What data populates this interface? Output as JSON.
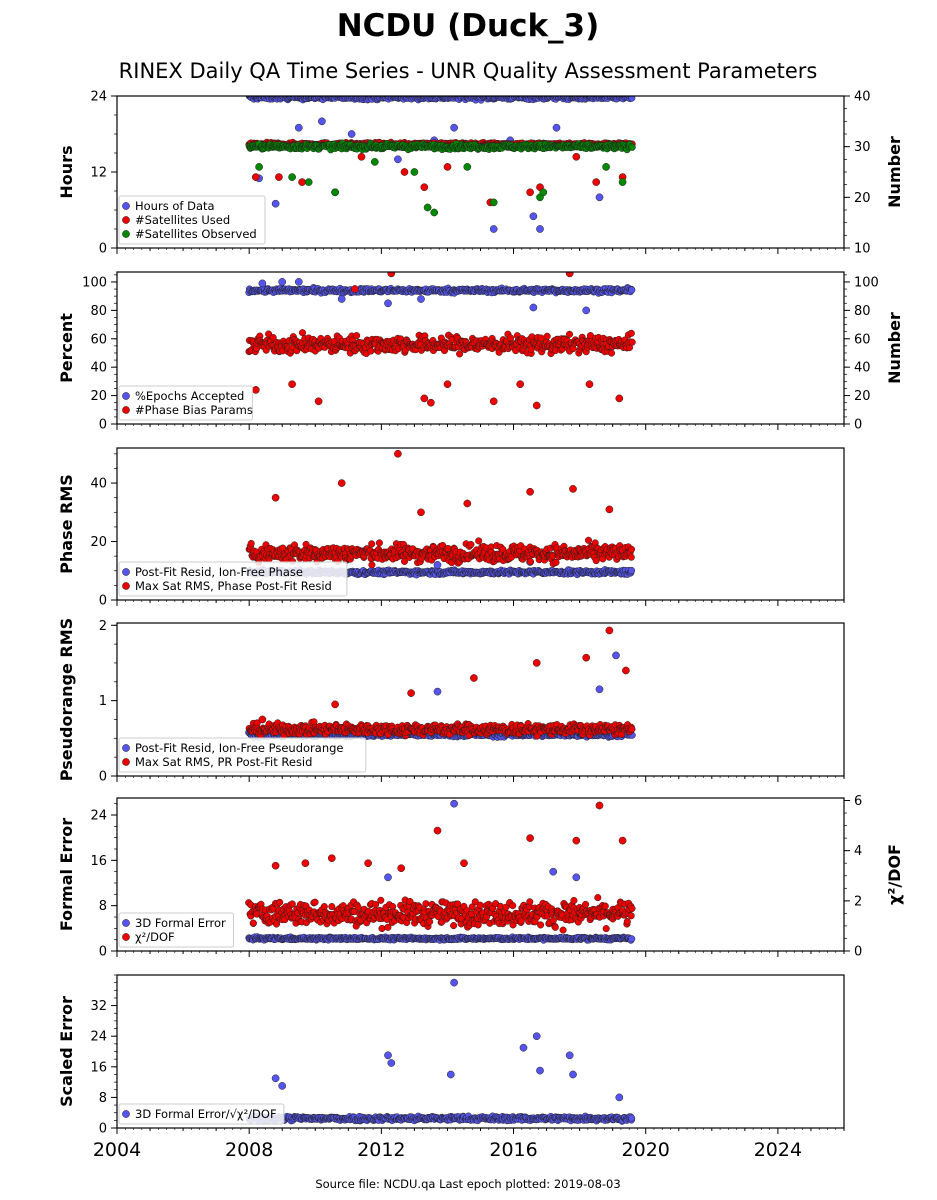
{
  "page": {
    "title": "NCDU (Duck_3)",
    "subtitle": "RINEX Daily QA Time Series - UNR Quality Assessment Parameters",
    "footer": "Source file: NCDU.qa Last epoch plotted: 2019-08-03"
  },
  "colors": {
    "blue": "#5555ee",
    "red": "#ee0000",
    "green": "#008800",
    "frame": "#000000"
  },
  "chart_data": [
    {
      "type": "scatter",
      "ylabel": "Hours",
      "ylabel_right": "Number",
      "xlim": [
        2004,
        2026
      ],
      "ylim": [
        0,
        24
      ],
      "ylim_right": [
        10,
        40
      ],
      "yticks": [
        0,
        12,
        24
      ],
      "yticks_right": [
        10,
        20,
        30,
        40
      ],
      "legend_placement": "lower-left",
      "series": [
        {
          "name": "Hours of Data",
          "color": "blue",
          "axis": "left",
          "base": 23.8,
          "spread": 0.6,
          "outliers": [
            [
              2008.3,
              11.0
            ],
            [
              2008.8,
              7.0
            ],
            [
              2009.5,
              19.0
            ],
            [
              2010.2,
              20.0
            ],
            [
              2011.1,
              18.0
            ],
            [
              2012.5,
              14.0
            ],
            [
              2013.6,
              17.0
            ],
            [
              2014.2,
              19.0
            ],
            [
              2015.4,
              3.0
            ],
            [
              2015.9,
              17.0
            ],
            [
              2016.6,
              5.0
            ],
            [
              2016.8,
              3.0
            ],
            [
              2017.3,
              19.0
            ],
            [
              2018.6,
              8.0
            ]
          ]
        },
        {
          "name": "#Satellites Used",
          "color": "red",
          "axis": "right",
          "base": 30.5,
          "spread": 0.5,
          "outliers": [
            [
              2008.2,
              24.0
            ],
            [
              2008.9,
              24.0
            ],
            [
              2009.6,
              23.0
            ],
            [
              2010.6,
              21.0
            ],
            [
              2011.4,
              28.0
            ],
            [
              2012.7,
              25.0
            ],
            [
              2013.3,
              22.0
            ],
            [
              2014.0,
              26.0
            ],
            [
              2015.3,
              19.0
            ],
            [
              2016.5,
              21.0
            ],
            [
              2016.8,
              22.0
            ],
            [
              2017.9,
              28.0
            ],
            [
              2018.5,
              23.0
            ],
            [
              2019.3,
              24.0
            ]
          ]
        },
        {
          "name": "#Satellites Observed",
          "color": "green",
          "axis": "right",
          "base": 30.0,
          "spread": 0.8,
          "outliers": [
            [
              2008.3,
              26.0
            ],
            [
              2009.3,
              24.0
            ],
            [
              2009.8,
              23.0
            ],
            [
              2010.6,
              21.0
            ],
            [
              2011.8,
              27.0
            ],
            [
              2013.0,
              25.0
            ],
            [
              2013.4,
              18.0
            ],
            [
              2013.6,
              17.0
            ],
            [
              2014.6,
              26.0
            ],
            [
              2015.4,
              19.0
            ],
            [
              2016.8,
              20.0
            ],
            [
              2016.9,
              21.0
            ],
            [
              2018.8,
              26.0
            ],
            [
              2019.3,
              23.0
            ]
          ]
        }
      ]
    },
    {
      "type": "scatter",
      "ylabel": "Percent",
      "ylabel_right": "Number",
      "xlim": [
        2004,
        2026
      ],
      "ylim": [
        0,
        107
      ],
      "ylim_right": [
        0,
        107
      ],
      "yticks": [
        0,
        20,
        40,
        60,
        80,
        100
      ],
      "yticks_right": [
        0,
        20,
        40,
        60,
        80,
        100
      ],
      "legend_placement": "lower-left",
      "series": [
        {
          "name": "%Epochs Accepted",
          "color": "blue",
          "axis": "left",
          "base": 94.0,
          "spread": 2.5,
          "outliers": [
            [
              2008.4,
              99.0
            ],
            [
              2009.0,
              100.0
            ],
            [
              2009.5,
              100.0
            ],
            [
              2010.8,
              88.0
            ],
            [
              2012.2,
              85.0
            ],
            [
              2013.2,
              88.0
            ],
            [
              2016.6,
              82.0
            ],
            [
              2018.2,
              80.0
            ]
          ]
        },
        {
          "name": "#Phase Bias Params",
          "color": "red",
          "axis": "right",
          "base": 56.0,
          "spread": 10.0,
          "outliers": [
            [
              2008.2,
              24.0
            ],
            [
              2009.3,
              28.0
            ],
            [
              2010.1,
              16.0
            ],
            [
              2011.2,
              95.0
            ],
            [
              2012.3,
              106.0
            ],
            [
              2013.3,
              18.0
            ],
            [
              2013.5,
              15.0
            ],
            [
              2014.0,
              28.0
            ],
            [
              2015.4,
              16.0
            ],
            [
              2016.2,
              28.0
            ],
            [
              2016.7,
              13.0
            ],
            [
              2017.7,
              106.0
            ],
            [
              2018.3,
              28.0
            ],
            [
              2019.2,
              18.0
            ]
          ]
        }
      ]
    },
    {
      "type": "scatter",
      "ylabel": "Phase RMS",
      "xlim": [
        2004,
        2026
      ],
      "ylim": [
        0,
        52
      ],
      "yticks": [
        0,
        20,
        40
      ],
      "legend_placement": "lower-left",
      "series": [
        {
          "name": "Post-Fit Resid, Ion-Free Phase",
          "color": "blue",
          "axis": "left",
          "base": 9.5,
          "spread": 1.2,
          "outliers": [
            [
              2013.7,
              12.0
            ],
            [
              2016.5,
              13.0
            ]
          ]
        },
        {
          "name": "Max Sat RMS, Phase Post-Fit Resid",
          "color": "red",
          "axis": "left",
          "base": 16.0,
          "spread": 5.0,
          "outliers": [
            [
              2008.8,
              35.0
            ],
            [
              2010.8,
              40.0
            ],
            [
              2012.5,
              50.0
            ],
            [
              2013.2,
              30.0
            ],
            [
              2014.6,
              33.0
            ],
            [
              2016.5,
              37.0
            ],
            [
              2017.8,
              38.0
            ],
            [
              2018.9,
              31.0
            ]
          ]
        }
      ]
    },
    {
      "type": "scatter",
      "ylabel": "Pseudorange RMS",
      "xlim": [
        2004,
        2026
      ],
      "ylim": [
        0,
        2.03
      ],
      "yticks": [
        0,
        1,
        2
      ],
      "legend_placement": "lower-left",
      "series": [
        {
          "name": "Post-Fit Resid, Ion-Free Pseudorange",
          "color": "blue",
          "axis": "left",
          "base": 0.55,
          "spread": 0.05,
          "outliers": [
            [
              2013.7,
              1.12
            ],
            [
              2018.6,
              1.15
            ],
            [
              2019.1,
              1.6
            ]
          ]
        },
        {
          "name": "Max Sat RMS, PR Post-Fit Resid",
          "color": "red",
          "axis": "left",
          "base": 0.62,
          "spread": 0.12,
          "outliers": [
            [
              2008.4,
              0.75
            ],
            [
              2010.6,
              0.95
            ],
            [
              2012.9,
              1.1
            ],
            [
              2014.8,
              1.3
            ],
            [
              2016.7,
              1.5
            ],
            [
              2018.2,
              1.57
            ],
            [
              2018.9,
              1.93
            ],
            [
              2019.4,
              1.4
            ]
          ]
        }
      ]
    },
    {
      "type": "scatter",
      "ylabel": "Formal Error",
      "ylabel_right": "χ²/DOF",
      "xlim": [
        2004,
        2026
      ],
      "ylim": [
        0,
        27
      ],
      "ylim_right": [
        0,
        6.1
      ],
      "yticks": [
        0,
        8,
        16,
        24
      ],
      "yticks_right": [
        0,
        2,
        4,
        6
      ],
      "legend_placement": "lower-left",
      "series": [
        {
          "name": "3D Formal Error",
          "color": "blue",
          "axis": "left",
          "base": 2.2,
          "spread": 0.4,
          "outliers": [
            [
              2012.2,
              13.0
            ],
            [
              2014.2,
              26.0
            ],
            [
              2017.2,
              14.0
            ],
            [
              2017.9,
              13.0
            ]
          ]
        },
        {
          "name": "χ²/DOF",
          "color": "red",
          "axis": "right",
          "base": 1.5,
          "spread": 0.8,
          "outliers": [
            [
              2008.8,
              3.4
            ],
            [
              2009.7,
              3.5
            ],
            [
              2010.5,
              3.7
            ],
            [
              2011.6,
              3.5
            ],
            [
              2012.6,
              3.3
            ],
            [
              2013.7,
              4.8
            ],
            [
              2014.5,
              3.5
            ],
            [
              2016.5,
              4.5
            ],
            [
              2017.9,
              4.4
            ],
            [
              2018.6,
              5.8
            ],
            [
              2019.3,
              4.4
            ]
          ]
        }
      ]
    },
    {
      "type": "scatter",
      "ylabel": "Scaled Error",
      "xlim": [
        2004,
        2026
      ],
      "ylim": [
        0,
        40
      ],
      "yticks": [
        0,
        8,
        16,
        24,
        32
      ],
      "xticks": [
        2004,
        2008,
        2012,
        2016,
        2020,
        2024
      ],
      "legend_placement": "lower-left",
      "series": [
        {
          "name": "3D Formal Error/√χ²/DOF",
          "color": "blue",
          "axis": "left",
          "base": 2.5,
          "spread": 1.0,
          "outliers": [
            [
              2008.8,
              13.0
            ],
            [
              2009.0,
              11.0
            ],
            [
              2012.2,
              19.0
            ],
            [
              2012.3,
              17.0
            ],
            [
              2014.1,
              14.0
            ],
            [
              2014.2,
              38.0
            ],
            [
              2016.3,
              21.0
            ],
            [
              2016.7,
              24.0
            ],
            [
              2016.8,
              15.0
            ],
            [
              2017.7,
              19.0
            ],
            [
              2017.8,
              14.0
            ],
            [
              2019.2,
              8.0
            ]
          ]
        }
      ]
    }
  ]
}
